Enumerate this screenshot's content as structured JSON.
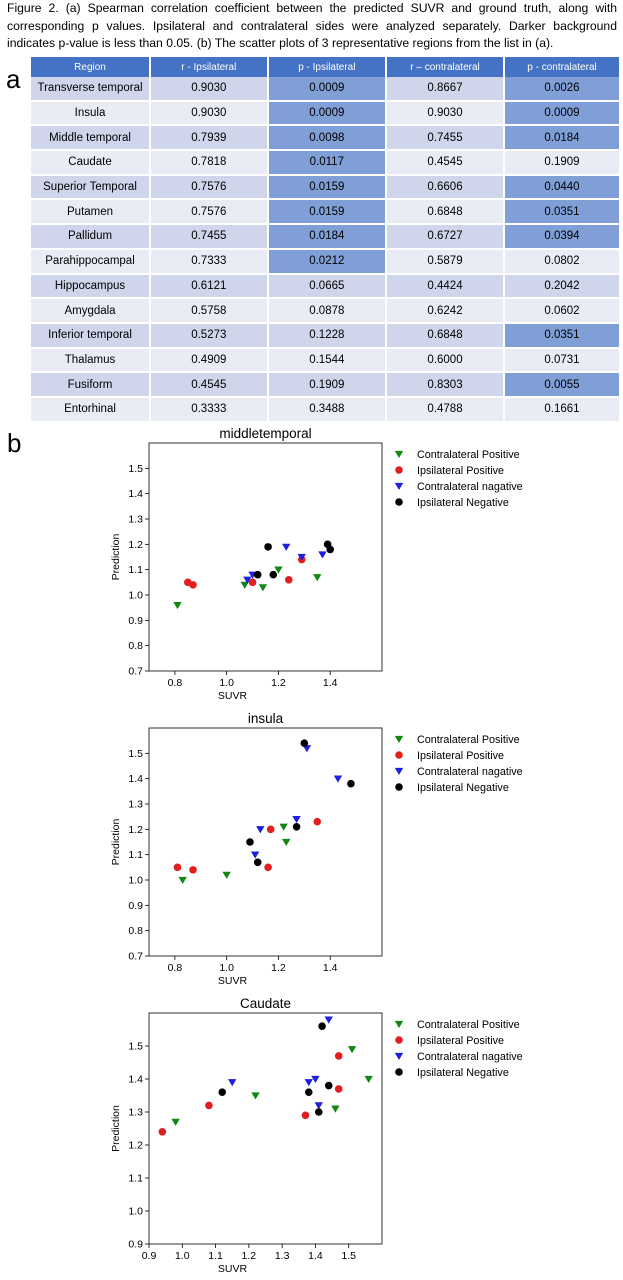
{
  "caption": "Figure 2. (a) Spearman correlation coefficient between the predicted SUVR and ground truth, along with corresponding p values. Ipsilateral and contralateral sides were analyzed separately. Darker background indicates p-value is less than 0.05. (b) The scatter plots of 3 representative  regions from the list in (a).",
  "panel_a": "a",
  "panel_b": "b",
  "table": {
    "columns": [
      "Region",
      "r - Ipsilateral",
      "p - Ipsilateral",
      "r – contralateral",
      "p - contralateral"
    ],
    "rows": [
      {
        "region": "Transverse temporal",
        "r_ipsi": "0.9030",
        "p_ipsi": "0.0009",
        "r_contra": "0.8667",
        "p_contra": "0.0026"
      },
      {
        "region": "Insula",
        "r_ipsi": "0.9030",
        "p_ipsi": "0.0009",
        "r_contra": "0.9030",
        "p_contra": "0.0009"
      },
      {
        "region": "Middle temporal",
        "r_ipsi": "0.7939",
        "p_ipsi": "0.0098",
        "r_contra": "0.7455",
        "p_contra": "0.0184"
      },
      {
        "region": "Caudate",
        "r_ipsi": "0.7818",
        "p_ipsi": "0.0117",
        "r_contra": "0.4545",
        "p_contra": "0.1909"
      },
      {
        "region": "Superior Temporal",
        "r_ipsi": "0.7576",
        "p_ipsi": "0.0159",
        "r_contra": "0.6606",
        "p_contra": "0.0440"
      },
      {
        "region": "Putamen",
        "r_ipsi": "0.7576",
        "p_ipsi": "0.0159",
        "r_contra": "0.6848",
        "p_contra": "0.0351"
      },
      {
        "region": "Pallidum",
        "r_ipsi": "0.7455",
        "p_ipsi": "0.0184",
        "r_contra": "0.6727",
        "p_contra": "0.0394"
      },
      {
        "region": "Parahippocampal",
        "r_ipsi": "0.7333",
        "p_ipsi": "0.0212",
        "r_contra": "0.5879",
        "p_contra": "0.0802"
      },
      {
        "region": "Hippocampus",
        "r_ipsi": "0.6121",
        "p_ipsi": "0.0665",
        "r_contra": "0.4424",
        "p_contra": "0.2042"
      },
      {
        "region": "Amygdala",
        "r_ipsi": "0.5758",
        "p_ipsi": "0.0878",
        "r_contra": "0.6242",
        "p_contra": "0.0602"
      },
      {
        "region": "Inferior temporal",
        "r_ipsi": "0.5273",
        "p_ipsi": "0.1228",
        "r_contra": "0.6848",
        "p_contra": "0.0351"
      },
      {
        "region": "Thalamus",
        "r_ipsi": "0.4909",
        "p_ipsi": "0.1544",
        "r_contra": "0.6000",
        "p_contra": "0.0731"
      },
      {
        "region": "Fusiform",
        "r_ipsi": "0.4545",
        "p_ipsi": "0.1909",
        "r_contra": "0.8303",
        "p_contra": "0.0055"
      },
      {
        "region": "Entorhinal",
        "r_ipsi": "0.3333",
        "p_ipsi": "0.3488",
        "r_contra": "0.4788",
        "p_contra": "0.1661"
      }
    ]
  },
  "colors": {
    "header": "#4472c4",
    "row_odd": "#cfd5ea",
    "row_even": "#e9ebf5",
    "significant": "#7f9fd6",
    "contralateral_positive": "#118811",
    "ipsilateral_positive": "#e02020",
    "contralateral_negative": "#1f1fe0",
    "ipsilateral_negative": "#000000"
  },
  "chart_data": [
    {
      "type": "scatter",
      "title": "middletemporal",
      "xlabel": "SUVR",
      "ylabel": "Prediction",
      "xlim": [
        0.7,
        1.6
      ],
      "ylim": [
        0.7,
        1.6
      ],
      "xticks": [
        0.8,
        1.0,
        1.2,
        1.4
      ],
      "yticks": [
        0.7,
        0.8,
        0.9,
        1.0,
        1.1,
        1.2,
        1.3,
        1.4,
        1.5
      ],
      "grid": false,
      "legend_position": "outside-top-right",
      "series": [
        {
          "name": "Contralateral Positive",
          "marker": "triangle-down",
          "color": "#118811",
          "points": [
            [
              0.81,
              0.96
            ],
            [
              1.07,
              1.04
            ],
            [
              1.14,
              1.03
            ],
            [
              1.2,
              1.1
            ],
            [
              1.35,
              1.07
            ]
          ]
        },
        {
          "name": "Ipsilateral Positive",
          "marker": "circle",
          "color": "#e02020",
          "points": [
            [
              0.85,
              1.05
            ],
            [
              0.87,
              1.04
            ],
            [
              1.1,
              1.05
            ],
            [
              1.24,
              1.06
            ],
            [
              1.29,
              1.14
            ]
          ]
        },
        {
          "name": "Contralateral nagative",
          "marker": "triangle-down",
          "color": "#1f1fe0",
          "points": [
            [
              1.08,
              1.06
            ],
            [
              1.1,
              1.08
            ],
            [
              1.23,
              1.19
            ],
            [
              1.29,
              1.15
            ],
            [
              1.37,
              1.16
            ]
          ]
        },
        {
          "name": "Ipsilateral Negative",
          "marker": "circle",
          "color": "#000000",
          "points": [
            [
              1.12,
              1.08
            ],
            [
              1.16,
              1.19
            ],
            [
              1.18,
              1.08
            ],
            [
              1.39,
              1.2
            ],
            [
              1.4,
              1.18
            ]
          ]
        }
      ]
    },
    {
      "type": "scatter",
      "title": "insula",
      "xlabel": "SUVR",
      "ylabel": "Prediction",
      "xlim": [
        0.7,
        1.6
      ],
      "ylim": [
        0.7,
        1.6
      ],
      "xticks": [
        0.8,
        1.0,
        1.2,
        1.4
      ],
      "yticks": [
        0.7,
        0.8,
        0.9,
        1.0,
        1.1,
        1.2,
        1.3,
        1.4,
        1.5
      ],
      "grid": false,
      "legend_position": "outside-top-right",
      "series": [
        {
          "name": "Contralateral Positive",
          "marker": "triangle-down",
          "color": "#118811",
          "points": [
            [
              0.83,
              1.0
            ],
            [
              1.0,
              1.02
            ],
            [
              1.22,
              1.21
            ],
            [
              1.23,
              1.15
            ]
          ]
        },
        {
          "name": "Ipsilateral Positive",
          "marker": "circle",
          "color": "#e02020",
          "points": [
            [
              0.81,
              1.05
            ],
            [
              0.87,
              1.04
            ],
            [
              1.16,
              1.05
            ],
            [
              1.17,
              1.2
            ],
            [
              1.35,
              1.23
            ]
          ]
        },
        {
          "name": "Contralateral nagative",
          "marker": "triangle-down",
          "color": "#1f1fe0",
          "points": [
            [
              1.11,
              1.1
            ],
            [
              1.13,
              1.2
            ],
            [
              1.27,
              1.24
            ],
            [
              1.31,
              1.52
            ],
            [
              1.43,
              1.4
            ]
          ]
        },
        {
          "name": "Ipsilateral Negative",
          "marker": "circle",
          "color": "#000000",
          "points": [
            [
              1.09,
              1.15
            ],
            [
              1.12,
              1.07
            ],
            [
              1.27,
              1.21
            ],
            [
              1.3,
              1.54
            ],
            [
              1.48,
              1.38
            ]
          ]
        }
      ]
    },
    {
      "type": "scatter",
      "title": "Caudate",
      "xlabel": "SUVR",
      "ylabel": "Prediction",
      "xlim": [
        0.9,
        1.6
      ],
      "ylim": [
        0.9,
        1.6
      ],
      "xticks": [
        0.9,
        1.0,
        1.1,
        1.2,
        1.3,
        1.4,
        1.5
      ],
      "yticks": [
        0.9,
        1.0,
        1.1,
        1.2,
        1.3,
        1.4,
        1.5
      ],
      "grid": false,
      "legend_position": "outside-top-right",
      "series": [
        {
          "name": "Contralateral Positive",
          "marker": "triangle-down",
          "color": "#118811",
          "points": [
            [
              0.98,
              1.27
            ],
            [
              1.22,
              1.35
            ],
            [
              1.46,
              1.31
            ],
            [
              1.51,
              1.49
            ],
            [
              1.56,
              1.4
            ]
          ]
        },
        {
          "name": "Ipsilateral Positive",
          "marker": "circle",
          "color": "#e02020",
          "points": [
            [
              0.94,
              1.24
            ],
            [
              1.08,
              1.32
            ],
            [
              1.37,
              1.29
            ],
            [
              1.47,
              1.37
            ],
            [
              1.47,
              1.47
            ]
          ]
        },
        {
          "name": "Contralateral nagative",
          "marker": "triangle-down",
          "color": "#1f1fe0",
          "points": [
            [
              1.15,
              1.39
            ],
            [
              1.38,
              1.39
            ],
            [
              1.4,
              1.4
            ],
            [
              1.41,
              1.32
            ],
            [
              1.44,
              1.58
            ]
          ]
        },
        {
          "name": "Ipsilateral Negative",
          "marker": "circle",
          "color": "#000000",
          "points": [
            [
              1.12,
              1.36
            ],
            [
              1.38,
              1.36
            ],
            [
              1.41,
              1.3
            ],
            [
              1.42,
              1.56
            ],
            [
              1.44,
              1.38
            ]
          ]
        }
      ]
    }
  ]
}
